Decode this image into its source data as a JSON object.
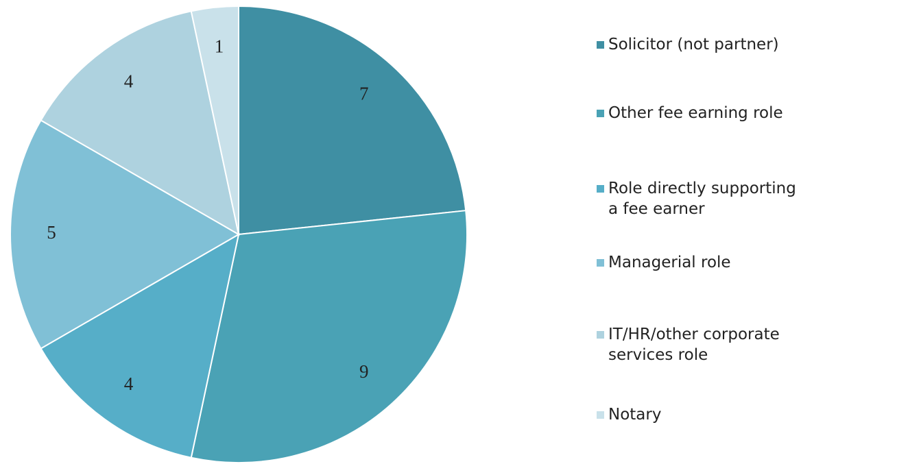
{
  "chart_data": {
    "type": "pie",
    "categories": [
      "Solicitor (not partner)",
      "Other fee earning role",
      "Role directly supporting a fee earner",
      "Managerial role",
      "IT/HR/other corporate services role",
      "Notary"
    ],
    "values": [
      7,
      9,
      4,
      5,
      4,
      1
    ],
    "colors": [
      "#3f8fa3",
      "#4aa2b5",
      "#56aec8",
      "#80c0d6",
      "#aed2df",
      "#c9e1ea"
    ],
    "legend": "right"
  }
}
